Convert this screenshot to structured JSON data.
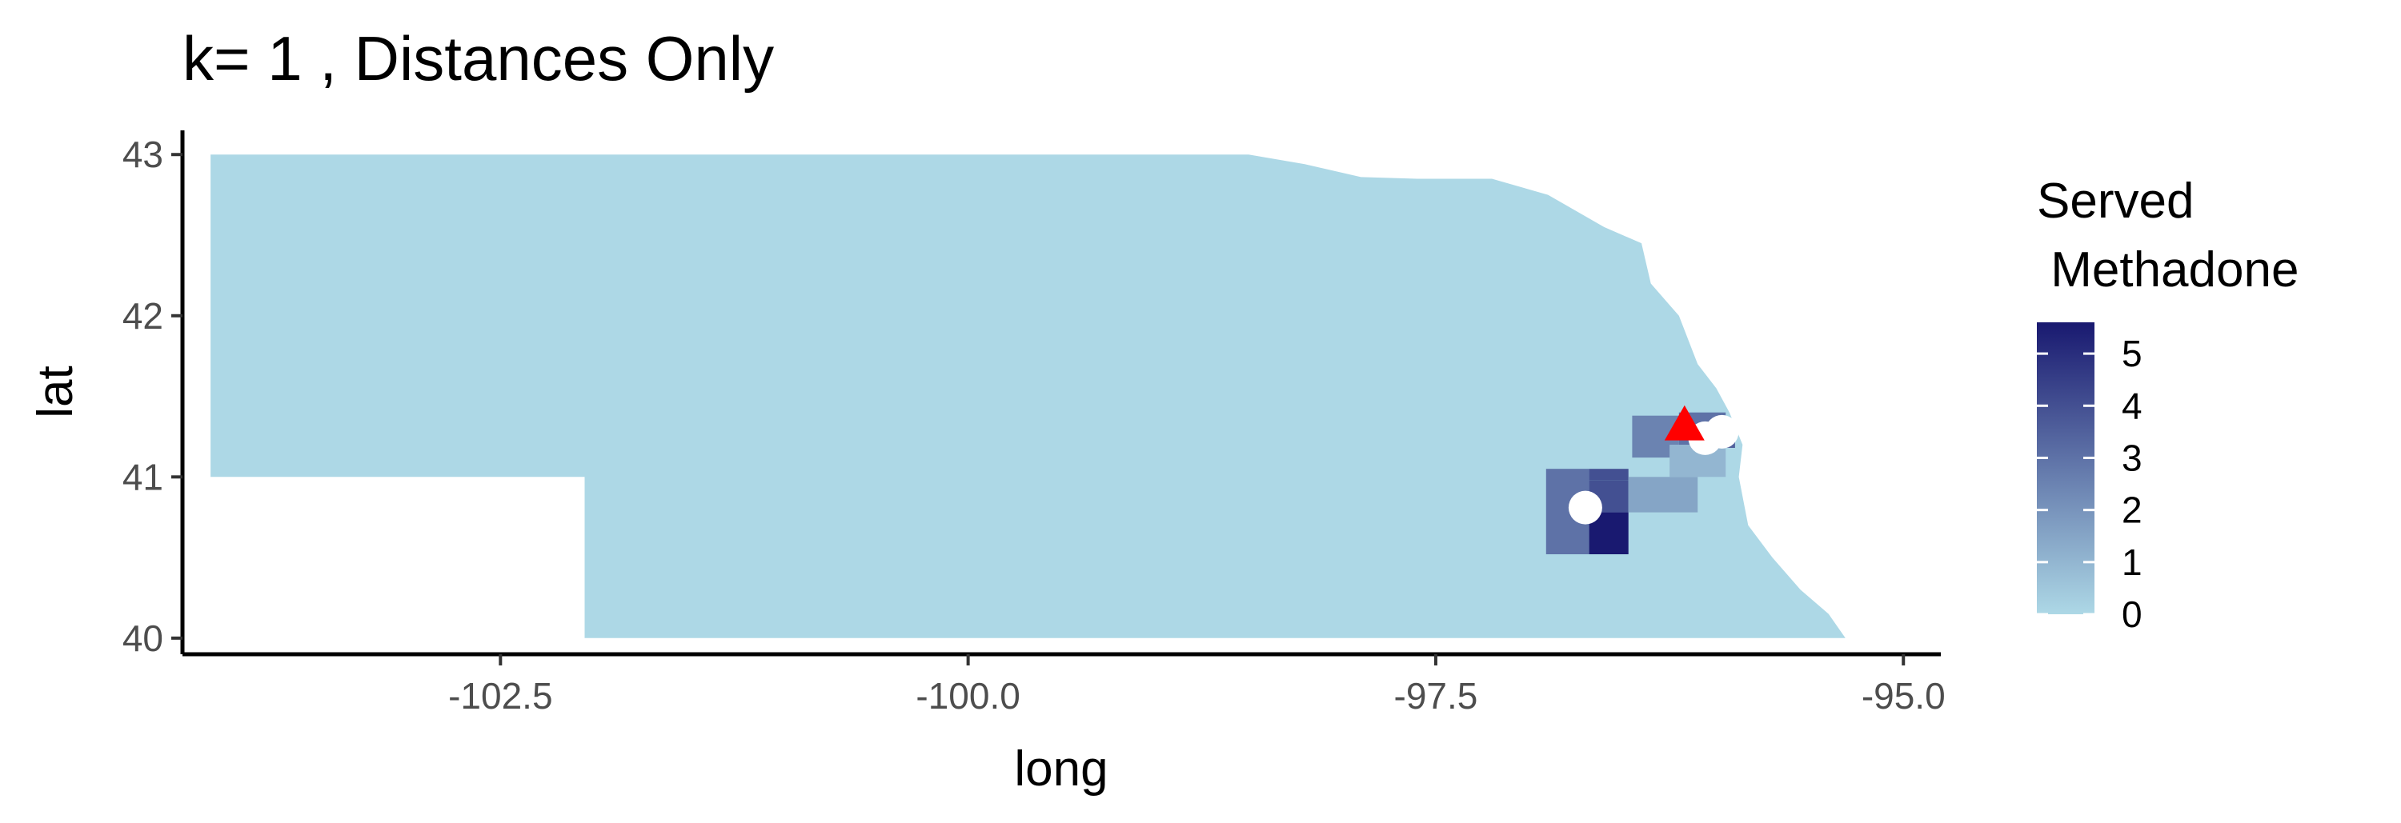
{
  "chart_data": {
    "type": "choropleth map",
    "title": "k= 1 , Distances Only",
    "xlabel": "long",
    "ylabel": "lat",
    "xlim": [
      -104.2,
      -94.8
    ],
    "ylim": [
      39.9,
      43.15
    ],
    "x_ticks": [
      -102.5,
      -100.0,
      -97.5,
      -95.0
    ],
    "x_tick_labels": [
      "-102.5",
      "-100.0",
      "-97.5",
      "-95.0"
    ],
    "y_ticks": [
      40,
      41,
      42,
      43
    ],
    "y_tick_labels": [
      "40",
      "41",
      "42",
      "43"
    ],
    "grid": false,
    "legend": {
      "title_lines": [
        "Served",
        " Methadone"
      ],
      "placement": "right",
      "min": 0,
      "max": 5.6,
      "breaks": [
        0,
        1,
        2,
        3,
        4,
        5
      ],
      "break_labels": [
        "0",
        "1",
        "2",
        "3",
        "4",
        "5"
      ],
      "color_low": "#add8e6",
      "color_high": "#191970"
    },
    "base_fill_value": 0,
    "regions": [
      {
        "value": 3,
        "lon": [
          -96.91,
          -96.68
        ],
        "lat": [
          40.52,
          41.05
        ]
      },
      {
        "value": 4,
        "lon": [
          -96.68,
          -96.47
        ],
        "lat": [
          40.98,
          41.05
        ]
      },
      {
        "value": 4,
        "lon": [
          -96.68,
          -96.47
        ],
        "lat": [
          40.78,
          40.98
        ]
      },
      {
        "value": 5.6,
        "lon": [
          -96.68,
          -96.47
        ],
        "lat": [
          40.52,
          40.78
        ]
      },
      {
        "value": 1.5,
        "lon": [
          -96.47,
          -96.1
        ],
        "lat": [
          40.78,
          41.0
        ]
      },
      {
        "value": 2.5,
        "lon": [
          -96.45,
          -96.2
        ],
        "lat": [
          41.12,
          41.38
        ]
      },
      {
        "value": 3,
        "lon": [
          -96.2,
          -95.95
        ],
        "lat": [
          41.2,
          41.4
        ]
      },
      {
        "value": 1,
        "lon": [
          -96.25,
          -95.95
        ],
        "lat": [
          41.0,
          41.2
        ]
      },
      {
        "value": 3.5,
        "lon": [
          -96.1,
          -95.9
        ],
        "lat": [
          41.18,
          41.3
        ]
      }
    ],
    "markers": [
      {
        "shape": "circle",
        "color": "#ffffff",
        "lon": -96.7,
        "lat": 40.81
      },
      {
        "shape": "circle",
        "color": "#ffffff",
        "lon": -96.06,
        "lat": 41.24
      },
      {
        "shape": "circle",
        "color": "#ffffff",
        "lon": -95.97,
        "lat": 41.28
      },
      {
        "shape": "triangle",
        "color": "#ff0000",
        "lon": -96.17,
        "lat": 41.32
      }
    ],
    "outline": [
      [
        -104.05,
        43.0
      ],
      [
        -98.5,
        43.0
      ],
      [
        -98.2,
        42.94
      ],
      [
        -97.9,
        42.86
      ],
      [
        -97.6,
        42.85
      ],
      [
        -97.2,
        42.85
      ],
      [
        -96.9,
        42.75
      ],
      [
        -96.6,
        42.55
      ],
      [
        -96.4,
        42.45
      ],
      [
        -96.35,
        42.2
      ],
      [
        -96.2,
        42.0
      ],
      [
        -96.1,
        41.7
      ],
      [
        -96.0,
        41.55
      ],
      [
        -95.93,
        41.4
      ],
      [
        -95.86,
        41.2
      ],
      [
        -95.88,
        41.0
      ],
      [
        -95.83,
        40.7
      ],
      [
        -95.7,
        40.5
      ],
      [
        -95.55,
        40.3
      ],
      [
        -95.4,
        40.15
      ],
      [
        -95.31,
        40.0
      ],
      [
        -102.05,
        40.0
      ],
      [
        -102.05,
        41.0
      ],
      [
        -104.05,
        41.0
      ]
    ]
  }
}
